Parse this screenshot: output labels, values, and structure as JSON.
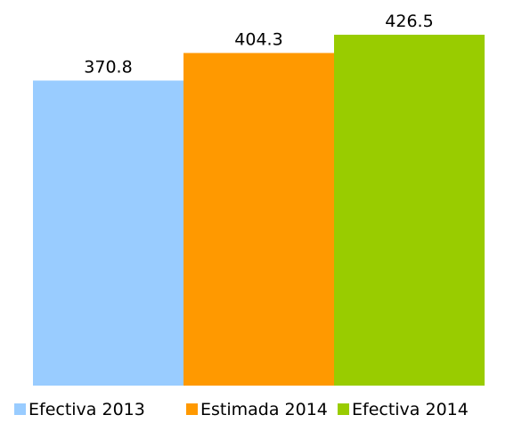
{
  "chart_data": {
    "type": "bar",
    "categories": [
      "Efectiva 2013",
      "Estimada 2014",
      "Efectiva 2014"
    ],
    "values": [
      370.8,
      404.3,
      426.5
    ],
    "value_labels": [
      "370.8",
      "404.3",
      "426.5"
    ],
    "colors": [
      "#99ccff",
      "#ff9900",
      "#99cc00"
    ],
    "title": "",
    "xlabel": "",
    "ylabel": "",
    "ylim": [
      0,
      426.5
    ],
    "grid": false,
    "legend": {
      "position": "bottom",
      "entries": [
        "Efectiva 2013",
        "Estimada 2014",
        "Efectiva 2014"
      ]
    }
  }
}
